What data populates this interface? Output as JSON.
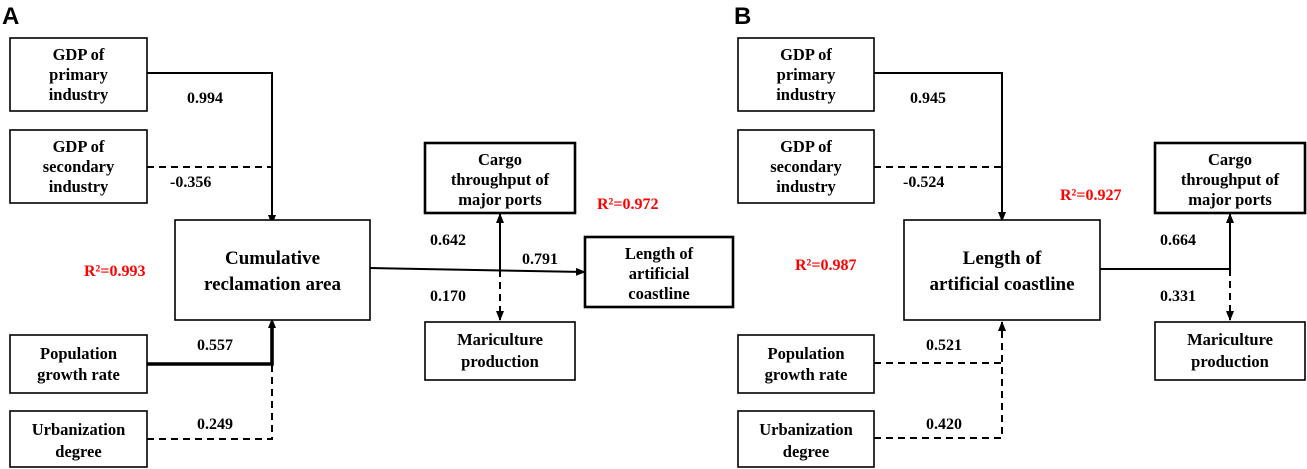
{
  "panels": {
    "A": {
      "letter": "A",
      "nodes": {
        "gdp_primary": [
          "GDP of",
          "primary",
          "industry"
        ],
        "gdp_secondary": [
          "GDP of",
          "secondary",
          "industry"
        ],
        "population": [
          "Population",
          "growth rate"
        ],
        "urbanization": [
          "Urbanization",
          "degree"
        ],
        "center": [
          "Cumulative",
          "reclamation area"
        ],
        "cargo": [
          "Cargo",
          "throughput of",
          "major ports"
        ],
        "outcome": [
          "Length of",
          "artificial",
          "coastline"
        ],
        "mariculture": [
          "Mariculture",
          "production"
        ]
      },
      "coefficients": {
        "gdp_primary": "0.994",
        "gdp_secondary": "-0.356",
        "population": "0.557",
        "urbanization": "0.249",
        "cargo": "0.642",
        "mariculture": "0.170",
        "outcome": "0.791"
      },
      "r2_center": "R²=0.993",
      "r2_right": "R²=0.972"
    },
    "B": {
      "letter": "B",
      "nodes": {
        "gdp_primary": [
          "GDP of",
          "primary",
          "industry"
        ],
        "gdp_secondary": [
          "GDP of",
          "secondary",
          "industry"
        ],
        "population": [
          "Population",
          "growth rate"
        ],
        "urbanization": [
          "Urbanization",
          "degree"
        ],
        "center": [
          "Length of",
          "artificial coastline"
        ],
        "cargo": [
          "Cargo",
          "throughput of",
          "major ports"
        ],
        "mariculture": [
          "Mariculture",
          "production"
        ]
      },
      "coefficients": {
        "gdp_primary": "0.945",
        "gdp_secondary": "-0.524",
        "population": "0.521",
        "urbanization": "0.420",
        "cargo": "0.664",
        "mariculture": "0.331"
      },
      "r2_center": "R²=0.987",
      "r2_right": "R²=0.927"
    }
  }
}
